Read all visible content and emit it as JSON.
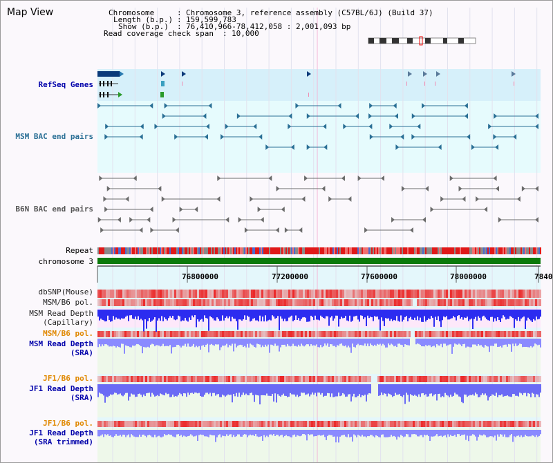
{
  "app": {
    "title": "Map View"
  },
  "header": {
    "chromosome_key": "Chromosome",
    "chromosome_val": "Chromosome 3, reference assembly (C57BL/6J) (Build 37)",
    "length_key": "Length (b.p.)",
    "length_val": "159,599,783",
    "show_key": "Show (b.p.)",
    "show_val": "76,410,966-78,412,058 : 2,001,093 bp",
    "span_key": "Read coverage check span",
    "span_val": "10,000"
  },
  "tracks": {
    "refseq": "RefSeq Genes",
    "msm_bac": "MSM BAC end pairs",
    "b6n_bac": "B6N BAC end pairs",
    "repeat": "Repeat",
    "chromosome": "chromosome 3",
    "dbsnp": "dbSNP(Mouse)",
    "msm_b6_pol": "MSM/B6 pol.",
    "msm_depth_cap_1": "MSM Read Depth",
    "msm_depth_cap_2": "(Capillary)",
    "msm_b6_pol2": "MSM/B6 pol.",
    "msm_depth_sra_1": "MSM Read Depth",
    "msm_depth_sra_2": "(SRA)",
    "jf1_b6_pol": "JF1/B6 pol.",
    "jf1_depth_sra_1": "JF1 Read Depth",
    "jf1_depth_sra_2": "(SRA)",
    "jf1_b6_pol2": "JF1/B6 pol.",
    "jf1_depth_trim_1": "JF1 Read Depth",
    "jf1_depth_trim_2": "(SRA trimmed)"
  },
  "axis": {
    "ticks": [
      "76800000",
      "77200000",
      "77600000",
      "78000000",
      "7840"
    ]
  },
  "colors": {
    "refseq_bg": "#d6f0fa",
    "bac_bg": "#e6fbfd",
    "msm_link": "#2a6f95",
    "b6n_link": "#6b6b6b",
    "chrom": "#0a7a0a",
    "depth_blue": "#2c2cf0",
    "depth_light": "#8a8aff",
    "pol_red": "#f05050",
    "label_blue": "#0000aa",
    "label_orange": "#e08800"
  }
}
